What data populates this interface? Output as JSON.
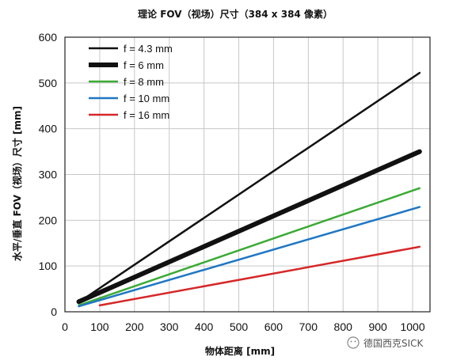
{
  "chart_data": {
    "type": "line",
    "title": "理论 FOV（视场）尺寸（384 x 384 像素）",
    "xlabel": "物体距离 [mm]",
    "ylabel": "水平/垂直 FOV（视场）尺寸 [mm]",
    "xlim": [
      0,
      1050
    ],
    "ylim": [
      0,
      600
    ],
    "xticks": [
      0,
      100,
      200,
      300,
      400,
      500,
      600,
      700,
      800,
      900,
      1000
    ],
    "yticks": [
      0,
      100,
      200,
      300,
      400,
      500,
      600
    ],
    "grid": true,
    "legend_position": "top-left",
    "series": [
      {
        "name": "f = 4.3 mm",
        "color": "#111111",
        "width": "thin",
        "x": [
          40,
          1020
        ],
        "y": [
          21,
          522
        ]
      },
      {
        "name": "f = 6 mm",
        "color": "#111111",
        "width": "thick",
        "x": [
          40,
          1020
        ],
        "y": [
          22,
          350
        ]
      },
      {
        "name": "f = 8 mm",
        "color": "#3aaa35",
        "width": "medium",
        "x": [
          40,
          1020
        ],
        "y": [
          14,
          270
        ]
      },
      {
        "name": "f = 10 mm",
        "color": "#1f77c4",
        "width": "medium",
        "x": [
          40,
          1020
        ],
        "y": [
          12,
          229
        ]
      },
      {
        "name": "f = 16 mm",
        "color": "#d62728",
        "width": "medium",
        "x": [
          100,
          1020
        ],
        "y": [
          14,
          142
        ]
      }
    ]
  },
  "watermark": "德国西克SICK"
}
